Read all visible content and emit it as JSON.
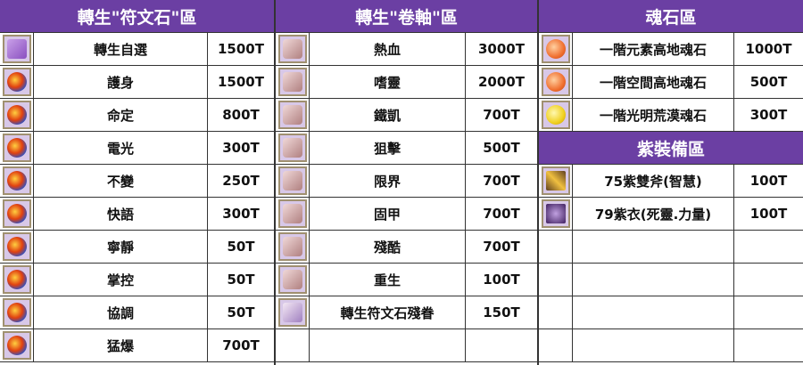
{
  "colors": {
    "header": "#6b3fa3"
  },
  "sections": [
    {
      "blocks": [
        {
          "title": "轉生\"符文石\"區",
          "items": [
            {
              "icon": "gift-box-icon",
              "name": "轉生自選",
              "price": "1500T"
            },
            {
              "icon": "rune-orb-icon",
              "name": "護身",
              "price": "1500T"
            },
            {
              "icon": "rune-orb-icon",
              "name": "命定",
              "price": "800T"
            },
            {
              "icon": "rune-orb-icon",
              "name": "電光",
              "price": "300T"
            },
            {
              "icon": "rune-orb-icon",
              "name": "不變",
              "price": "250T"
            },
            {
              "icon": "rune-orb-icon",
              "name": "快語",
              "price": "300T"
            },
            {
              "icon": "rune-orb-icon",
              "name": "寧靜",
              "price": "50T"
            },
            {
              "icon": "rune-orb-icon",
              "name": "掌控",
              "price": "50T"
            },
            {
              "icon": "rune-orb-icon",
              "name": "協調",
              "price": "50T"
            },
            {
              "icon": "rune-orb-icon",
              "name": "猛爆",
              "price": "700T"
            }
          ]
        }
      ]
    },
    {
      "blocks": [
        {
          "title": "轉生\"卷軸\"區",
          "items": [
            {
              "icon": "scroll-icon",
              "name": "熱血",
              "price": "3000T"
            },
            {
              "icon": "scroll-icon",
              "name": "嗜靈",
              "price": "2000T"
            },
            {
              "icon": "scroll-icon",
              "name": "鐵凱",
              "price": "700T"
            },
            {
              "icon": "scroll-icon",
              "name": "狙擊",
              "price": "500T"
            },
            {
              "icon": "scroll-icon",
              "name": "限界",
              "price": "700T"
            },
            {
              "icon": "scroll-icon",
              "name": "固甲",
              "price": "700T"
            },
            {
              "icon": "scroll-icon",
              "name": "殘酷",
              "price": "700T"
            },
            {
              "icon": "scroll-icon",
              "name": "重生",
              "price": "100T"
            },
            {
              "icon": "scroll-fragment-icon",
              "name": "轉生符文石殘眷",
              "price": "150T"
            }
          ]
        }
      ]
    },
    {
      "blocks": [
        {
          "title": "魂石區",
          "items": [
            {
              "icon": "orange-soulstone-icon",
              "name": "一階元素高地魂石",
              "price": "1000T"
            },
            {
              "icon": "orange-soulstone-icon",
              "name": "一階空間高地魂石",
              "price": "500T"
            },
            {
              "icon": "yellow-soulstone-icon",
              "name": "一階光明荒漠魂石",
              "price": "300T"
            }
          ]
        },
        {
          "title": "紫裝備區",
          "items": [
            {
              "icon": "axe-icon",
              "name": "75紫雙斧(智慧)",
              "price": "100T"
            },
            {
              "icon": "robe-icon",
              "name": "79紫衣(死靈.力量)",
              "price": "100T"
            }
          ]
        }
      ]
    }
  ]
}
